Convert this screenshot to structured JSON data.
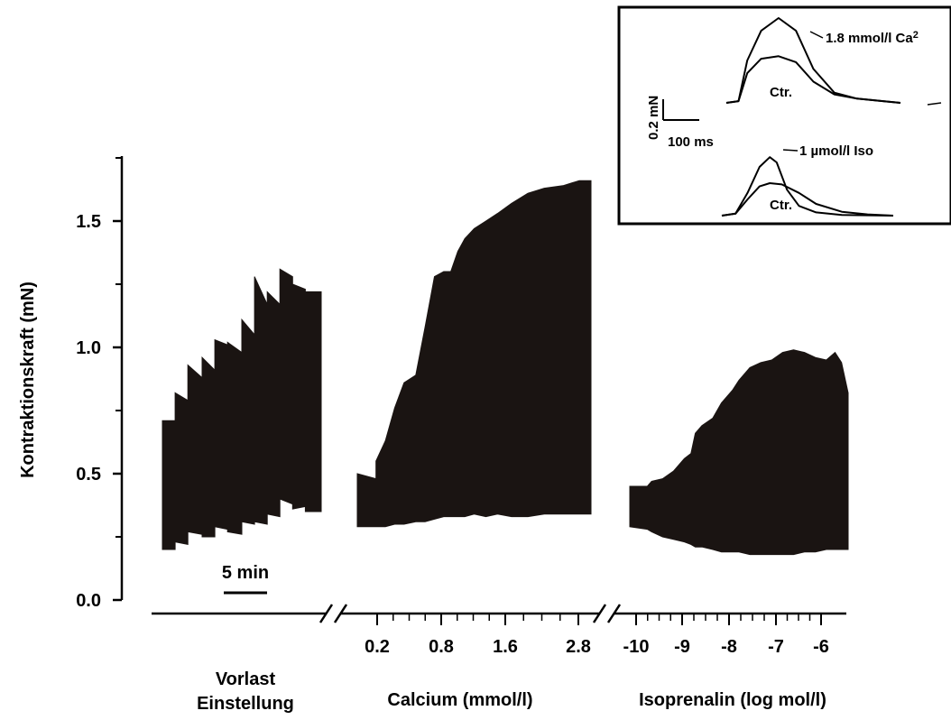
{
  "chart_data": {
    "type": "area",
    "ylabel": "Kontraktionskraft (mN)",
    "ylim": [
      0,
      1.75
    ],
    "y_ticks": [
      "0.0",
      "0.5",
      "1.0",
      "1.5"
    ],
    "y_tick_values": [
      0,
      0.5,
      1.0,
      1.5
    ],
    "grid": false,
    "scale_bar": "5 min",
    "segments": [
      {
        "label": "Vorlast Einstellung",
        "label_lines": [
          "Vorlast",
          "Einstellung"
        ],
        "series": [
          {
            "x": [
              0,
              0.08,
              0.08,
              0.16,
              0.16,
              0.25,
              0.25,
              0.33,
              0.33,
              0.41,
              0.41,
              0.5,
              0.5,
              0.58,
              0.58,
              0.66,
              0.66,
              0.74,
              0.74,
              0.82,
              0.82,
              0.9,
              0.9,
              1.0
            ],
            "upper": [
              0.71,
              0.71,
              0.82,
              0.79,
              0.93,
              0.88,
              0.96,
              0.91,
              1.03,
              1.01,
              1.02,
              0.98,
              1.11,
              1.05,
              1.28,
              1.17,
              1.22,
              1.17,
              1.31,
              1.28,
              1.25,
              1.23,
              1.22,
              1.22
            ],
            "lower": [
              0.2,
              0.2,
              0.23,
              0.22,
              0.27,
              0.26,
              0.25,
              0.25,
              0.29,
              0.28,
              0.27,
              0.26,
              0.31,
              0.3,
              0.31,
              0.3,
              0.34,
              0.33,
              0.4,
              0.38,
              0.36,
              0.37,
              0.35,
              0.35
            ]
          }
        ]
      },
      {
        "label": "Calcium (mmol/l)",
        "ticks": [
          "0.2",
          "0.8",
          "1.6",
          "2.8"
        ],
        "series": [
          {
            "x": [
              0,
              0.08,
              0.08,
              0.12,
              0.16,
              0.2,
              0.25,
              0.29,
              0.33,
              0.37,
              0.4,
              0.43,
              0.46,
              0.5,
              0.55,
              0.6,
              0.66,
              0.73,
              0.8,
              0.88,
              0.95,
              1.0
            ],
            "upper": [
              0.5,
              0.48,
              0.55,
              0.63,
              0.76,
              0.86,
              0.89,
              1.08,
              1.28,
              1.3,
              1.3,
              1.38,
              1.43,
              1.47,
              1.5,
              1.53,
              1.57,
              1.61,
              1.63,
              1.64,
              1.66,
              1.66
            ],
            "lower": [
              0.29,
              0.29,
              0.29,
              0.29,
              0.3,
              0.3,
              0.31,
              0.31,
              0.32,
              0.33,
              0.33,
              0.33,
              0.33,
              0.34,
              0.33,
              0.34,
              0.33,
              0.33,
              0.34,
              0.34,
              0.34,
              0.34
            ]
          }
        ]
      },
      {
        "label": "Isoprenalin (log mol/l)",
        "ticks": [
          "-10",
          "-9",
          "-8",
          "-7",
          "-6"
        ],
        "series": [
          {
            "x": [
              0,
              0.08,
              0.1,
              0.15,
              0.2,
              0.25,
              0.28,
              0.3,
              0.33,
              0.38,
              0.42,
              0.47,
              0.5,
              0.55,
              0.6,
              0.65,
              0.7,
              0.75,
              0.8,
              0.85,
              0.9,
              0.94,
              0.97,
              1.0
            ],
            "upper": [
              0.45,
              0.45,
              0.47,
              0.48,
              0.51,
              0.56,
              0.58,
              0.66,
              0.69,
              0.72,
              0.78,
              0.83,
              0.87,
              0.92,
              0.94,
              0.95,
              0.98,
              0.99,
              0.98,
              0.96,
              0.95,
              0.98,
              0.94,
              0.82
            ],
            "lower": [
              0.29,
              0.28,
              0.27,
              0.25,
              0.24,
              0.23,
              0.22,
              0.21,
              0.21,
              0.2,
              0.19,
              0.19,
              0.19,
              0.18,
              0.18,
              0.18,
              0.18,
              0.18,
              0.19,
              0.19,
              0.2,
              0.2,
              0.2,
              0.2
            ]
          }
        ]
      }
    ],
    "inset": {
      "scale_y": "0.2 mN",
      "scale_x": "100 ms",
      "panels": [
        {
          "labels": [
            "1.8 mmol/l Ca",
            "Ctr."
          ],
          "superscript": "2",
          "traces": [
            {
              "name": "1.8 mmol/l Ca2",
              "t": [
                0,
                0.07,
                0.12,
                0.2,
                0.3,
                0.4,
                0.5,
                0.62,
                0.75,
                0.9,
                1.0
              ],
              "y": [
                0,
                0.02,
                0.5,
                0.85,
                1.0,
                0.85,
                0.4,
                0.12,
                0.05,
                0.02,
                0.0
              ]
            },
            {
              "name": "Ctr.",
              "t": [
                0,
                0.07,
                0.12,
                0.2,
                0.3,
                0.4,
                0.5,
                0.62,
                0.75,
                0.9,
                1.0
              ],
              "y": [
                0,
                0.02,
                0.35,
                0.52,
                0.55,
                0.48,
                0.25,
                0.1,
                0.05,
                0.02,
                0.0
              ]
            }
          ]
        },
        {
          "labels": [
            "1 µmol/l Iso",
            "Ctr."
          ],
          "traces": [
            {
              "name": "1 µmol/l Iso",
              "t": [
                0,
                0.08,
                0.15,
                0.22,
                0.28,
                0.32,
                0.38,
                0.45,
                0.55,
                0.7,
                1.0
              ],
              "y": [
                0,
                0.03,
                0.35,
                0.75,
                0.9,
                0.82,
                0.4,
                0.15,
                0.05,
                0.01,
                0.0
              ]
            },
            {
              "name": "Ctr.",
              "t": [
                0,
                0.08,
                0.15,
                0.22,
                0.28,
                0.35,
                0.45,
                0.55,
                0.7,
                0.85,
                1.0
              ],
              "y": [
                0,
                0.03,
                0.25,
                0.45,
                0.5,
                0.48,
                0.35,
                0.18,
                0.06,
                0.02,
                0.0
              ]
            }
          ]
        }
      ]
    }
  }
}
